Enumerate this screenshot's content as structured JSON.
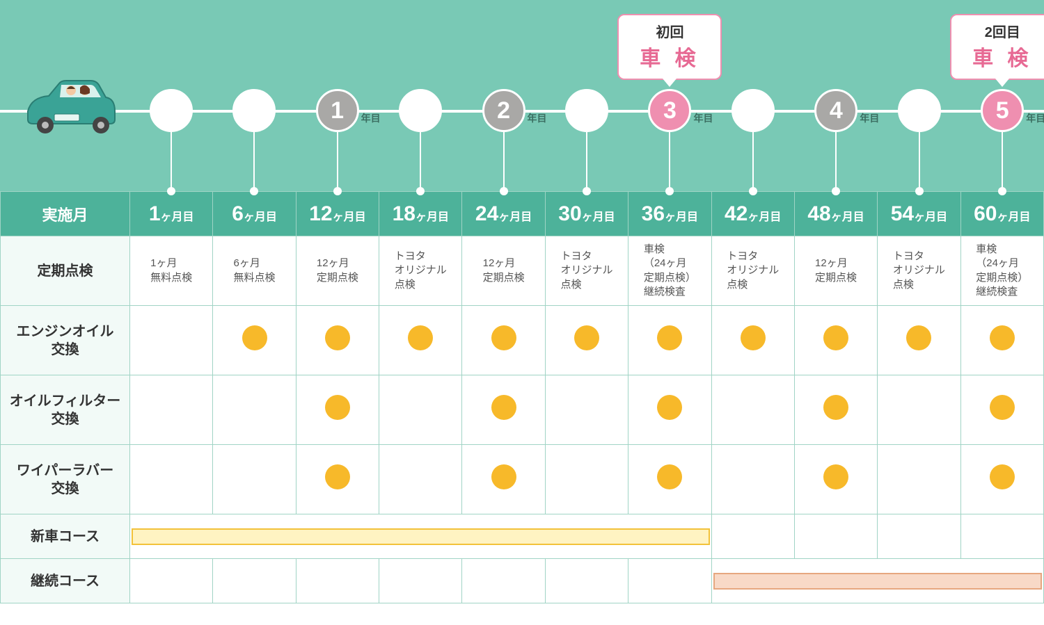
{
  "colors": {
    "topBg": "#79c9b5",
    "nodeGray": "#a9a8a6",
    "nodePink": "#ef8fb0",
    "pinkText": "#e76a94",
    "headerBg": "#4db29a",
    "border": "#a0d4c5",
    "firstColBg": "#f2faf7",
    "dot": "#f7b92a",
    "barYellowFill": "#fff3c2",
    "barYellowBorder": "#f2c23a",
    "barPinkFill": "#f8d9c7",
    "barPinkBorder": "#e6a77f"
  },
  "callouts": [
    {
      "line1": "初回",
      "line2": "車 検",
      "col": 7
    },
    {
      "line1": "2回目",
      "line2": "車 検",
      "col": 11
    }
  ],
  "yearSuffix": "年目",
  "timeline": {
    "nodes": [
      {
        "col": 1,
        "type": "white",
        "label": ""
      },
      {
        "col": 2,
        "type": "white",
        "label": ""
      },
      {
        "col": 3,
        "type": "gray",
        "label": "1",
        "year": true
      },
      {
        "col": 4,
        "type": "white",
        "label": ""
      },
      {
        "col": 5,
        "type": "gray",
        "label": "2",
        "year": true
      },
      {
        "col": 6,
        "type": "white",
        "label": ""
      },
      {
        "col": 7,
        "type": "pink",
        "label": "3",
        "year": true
      },
      {
        "col": 8,
        "type": "white",
        "label": ""
      },
      {
        "col": 9,
        "type": "gray",
        "label": "4",
        "year": true
      },
      {
        "col": 10,
        "type": "white",
        "label": ""
      },
      {
        "col": 11,
        "type": "pink",
        "label": "5",
        "year": true
      }
    ]
  },
  "table": {
    "firstHeader": "実施月",
    "monthNumbers": [
      "1",
      "6",
      "12",
      "18",
      "24",
      "30",
      "36",
      "42",
      "48",
      "54",
      "60"
    ],
    "monthSuffix": "ヶ月目",
    "rows": [
      {
        "label": "定期点検",
        "cells": [
          "1ヶ月\n無料点検",
          "6ヶ月\n無料点検",
          "12ヶ月\n定期点検",
          "トヨタ\nオリジナル\n点検",
          "12ヶ月\n定期点検",
          "トヨタ\nオリジナル\n点検",
          "車検\n（24ヶ月\n定期点検）\n継続検査",
          "トヨタ\nオリジナル\n点検",
          "12ヶ月\n定期点検",
          "トヨタ\nオリジナル\n点検",
          "車検\n（24ヶ月\n定期点検）\n継続検査"
        ]
      },
      {
        "label": "エンジンオイル\n交換",
        "dots": [
          false,
          true,
          true,
          true,
          true,
          true,
          true,
          true,
          true,
          true,
          true
        ]
      },
      {
        "label": "オイルフィルター\n交換",
        "dots": [
          false,
          false,
          true,
          false,
          true,
          false,
          true,
          false,
          true,
          false,
          true
        ]
      },
      {
        "label": "ワイパーラバー\n交換",
        "dots": [
          false,
          false,
          true,
          false,
          true,
          false,
          true,
          false,
          true,
          false,
          true
        ]
      }
    ],
    "courseRows": [
      {
        "label": "新車コース",
        "bar": "yellow",
        "start": 1,
        "end": 7
      },
      {
        "label": "継続コース",
        "bar": "pink",
        "start": 8,
        "end": 11
      }
    ]
  }
}
